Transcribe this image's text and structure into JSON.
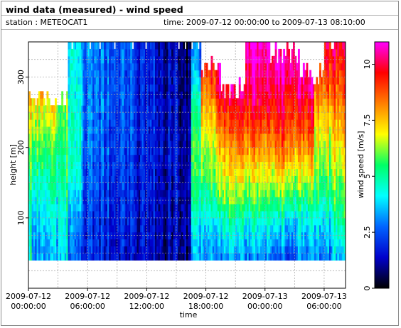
{
  "header": {
    "title": "wind data (measured) - wind speed",
    "station": "station : METEOCAT1",
    "time_range": "time: 2009-07-12 00:00:00 to 2009-07-13 08:10:00"
  },
  "chart_data": {
    "type": "heatmap",
    "xlabel": "time",
    "ylabel": "height [m]",
    "colorbar_label": "wind speed [m/s]",
    "x_ticks": [
      {
        "hour": 0,
        "label_date": "2009-07-12",
        "label_time": "00:00:00"
      },
      {
        "hour": 6,
        "label_date": "2009-07-12",
        "label_time": "06:00:00"
      },
      {
        "hour": 12,
        "label_date": "2009-07-12",
        "label_time": "12:00:00"
      },
      {
        "hour": 18,
        "label_date": "2009-07-12",
        "label_time": "18:00:00"
      },
      {
        "hour": 24,
        "label_date": "2009-07-13",
        "label_time": "00:00:00"
      },
      {
        "hour": 30,
        "label_date": "2009-07-13",
        "label_time": "06:00:00"
      }
    ],
    "y_ticks": [
      "100",
      "200",
      "300"
    ],
    "y_tick_values": [
      100,
      200,
      300
    ],
    "colorbar_ticks": [
      "0",
      "2.5",
      "5",
      "7.5",
      "10"
    ],
    "colorbar_tick_values": [
      0,
      2.5,
      5,
      7.5,
      10
    ],
    "xlim_hours": [
      0,
      32.17
    ],
    "ylim": [
      0,
      350
    ],
    "data_height_range": [
      40,
      350
    ],
    "color_range": [
      0,
      11
    ],
    "colormap": [
      "#000000",
      "#0000cc",
      "#0064ff",
      "#00ffff",
      "#00ff66",
      "#ffff00",
      "#ff7f00",
      "#ff0000",
      "#ff00ff"
    ],
    "time_segments": [
      {
        "from": 0,
        "to": 0.3,
        "ws": [
          5.2,
          4.8,
          5.5,
          6.5,
          7.5,
          9.0,
          9.2
        ]
      },
      {
        "from": 0.3,
        "to": 1.5,
        "ws": [
          3.0,
          3.5,
          4.5,
          5.5,
          6.5,
          8.0,
          8.5
        ]
      },
      {
        "from": 1.5,
        "to": 3.0,
        "ws": [
          3.2,
          3.8,
          4.8,
          5.5,
          6.8,
          7.5,
          8.0
        ]
      },
      {
        "from": 3.0,
        "to": 4.0,
        "ws": [
          4.0,
          4.5,
          5.0,
          5.5,
          6.0,
          6.0,
          5.5
        ]
      },
      {
        "from": 4.0,
        "to": 5.5,
        "ws": [
          2.5,
          3.0,
          4.0,
          4.5,
          4.5,
          4.0,
          4.0
        ]
      },
      {
        "from": 5.5,
        "to": 7.0,
        "ws": [
          2.0,
          2.2,
          2.5,
          2.8,
          3.0,
          3.0,
          3.2
        ]
      },
      {
        "from": 7.0,
        "to": 9.0,
        "ws": [
          1.8,
          2.0,
          2.2,
          2.5,
          2.6,
          2.8,
          2.8
        ]
      },
      {
        "from": 9.0,
        "to": 11.0,
        "ws": [
          1.5,
          1.8,
          2.0,
          2.2,
          2.3,
          2.4,
          2.5
        ]
      },
      {
        "from": 11.0,
        "to": 13.0,
        "ws": [
          1.5,
          1.6,
          1.8,
          1.9,
          2.0,
          2.0,
          2.0
        ]
      },
      {
        "from": 13.0,
        "to": 15.0,
        "ws": [
          1.2,
          1.4,
          1.5,
          1.6,
          1.6,
          1.5,
          1.4
        ]
      },
      {
        "from": 15.0,
        "to": 16.5,
        "ws": [
          1.0,
          1.2,
          1.3,
          1.3,
          1.2,
          1.0,
          0.9
        ]
      },
      {
        "from": 16.5,
        "to": 17.5,
        "ws": [
          3.0,
          4.0,
          5.0,
          5.5,
          5.0,
          3.5,
          2.5
        ]
      },
      {
        "from": 17.5,
        "to": 19.0,
        "ws": [
          3.0,
          4.0,
          5.5,
          6.5,
          7.5,
          9.0,
          9.5
        ]
      },
      {
        "from": 19.0,
        "to": 21.0,
        "ws": [
          3.0,
          4.5,
          6.5,
          7.5,
          9.0,
          10.5,
          11.0
        ]
      },
      {
        "from": 21.0,
        "to": 23.0,
        "ws": [
          3.0,
          4.5,
          6.5,
          8.0,
          9.5,
          10.5,
          11.0
        ]
      },
      {
        "from": 23.0,
        "to": 25.0,
        "ws": [
          3.0,
          4.5,
          6.5,
          8.0,
          9.5,
          10.5,
          11.0
        ]
      },
      {
        "from": 25.0,
        "to": 27.0,
        "ws": [
          2.5,
          4.0,
          6.5,
          8.5,
          9.5,
          10.5,
          11.0
        ]
      },
      {
        "from": 27.0,
        "to": 29.0,
        "ws": [
          3.0,
          4.0,
          6.0,
          8.0,
          9.5,
          10.5,
          11.0
        ]
      },
      {
        "from": 29.0,
        "to": 31.0,
        "ws": [
          3.0,
          4.0,
          5.5,
          6.5,
          7.5,
          9.0,
          10.0
        ]
      },
      {
        "from": 31.0,
        "to": 32.17,
        "ws": [
          3.5,
          5.0,
          6.0,
          7.0,
          8.0,
          9.0,
          10.0
        ]
      }
    ],
    "data_tops": [
      {
        "from": 0,
        "to": 4.0,
        "top": 265
      },
      {
        "from": 4.0,
        "to": 17.5,
        "top": 350
      },
      {
        "from": 17.5,
        "to": 19.5,
        "top": 310
      },
      {
        "from": 19.5,
        "to": 22.0,
        "top": 280
      },
      {
        "from": 22.0,
        "to": 24.5,
        "top": 350
      },
      {
        "from": 24.5,
        "to": 27.5,
        "top": 330
      },
      {
        "from": 27.5,
        "to": 30.0,
        "top": 300
      },
      {
        "from": 30.0,
        "to": 32.17,
        "top": 350
      }
    ]
  }
}
